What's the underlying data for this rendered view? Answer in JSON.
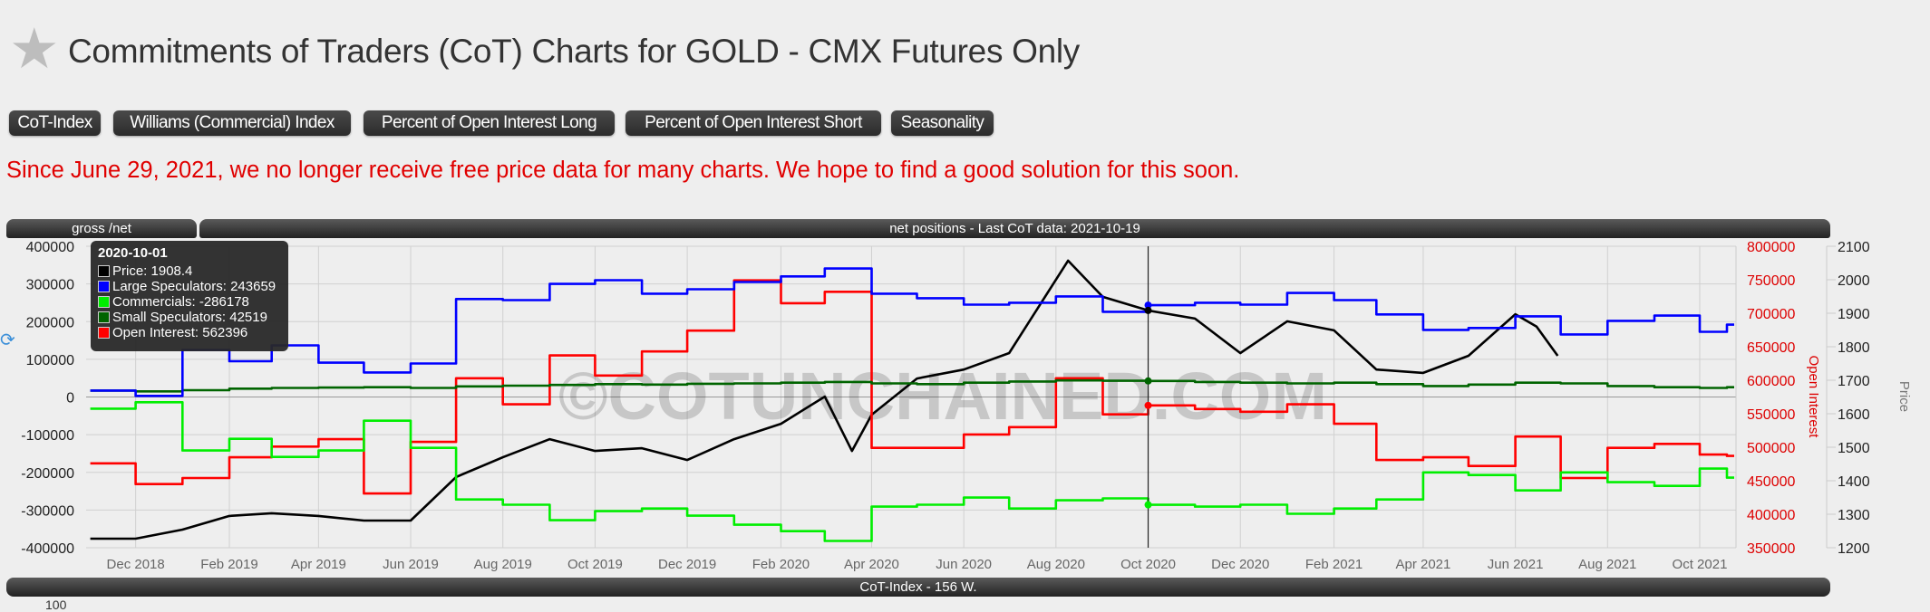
{
  "header": {
    "star_icon": "star-icon",
    "title": "Commitments of Traders (CoT) Charts for GOLD - CMX Futures Only"
  },
  "nav_buttons": [
    "CoT-Index",
    "Williams (Commercial) Index",
    "Percent of Open Interest Long",
    "Percent of Open Interest Short",
    "Seasonality"
  ],
  "notice": "Since June 29, 2021, we no longer receive free price data for many charts. We hope to find a good solution for this soon.",
  "chart_panel": {
    "toggle_label": "gross /net",
    "title": "net positions - Last CoT data: 2021-10-19",
    "bottom_bar": "CoT-Index - 156 W.",
    "bottom_cut_label": "100"
  },
  "tooltip": {
    "date": "2020-10-01",
    "rows": [
      {
        "label": "Price: 1908.4",
        "color": "#000000"
      },
      {
        "label": "Large Speculators: 243659",
        "color": "#0000ff"
      },
      {
        "label": "Commercials: -286178",
        "color": "#00ee00"
      },
      {
        "label": "Small Speculators: 42519",
        "color": "#006400"
      },
      {
        "label": "Open Interest: 562396",
        "color": "#ff0000"
      }
    ]
  },
  "chart_data": {
    "type": "line",
    "title": "net positions - Last CoT data: 2021-10-19",
    "watermark": "©COTUNCHAINED.COM",
    "crosshair_date": "2020-10-01",
    "x_ticks": [
      {
        "date": "2018-12-01",
        "label": "Dec 2018"
      },
      {
        "date": "2019-02-01",
        "label": "Feb 2019"
      },
      {
        "date": "2019-04-01",
        "label": "Apr 2019"
      },
      {
        "date": "2019-06-01",
        "label": "Jun 2019"
      },
      {
        "date": "2019-08-01",
        "label": "Aug 2019"
      },
      {
        "date": "2019-10-01",
        "label": "Oct 2019"
      },
      {
        "date": "2019-12-01",
        "label": "Dec 2019"
      },
      {
        "date": "2020-02-01",
        "label": "Feb 2020"
      },
      {
        "date": "2020-04-01",
        "label": "Apr 2020"
      },
      {
        "date": "2020-06-01",
        "label": "Jun 2020"
      },
      {
        "date": "2020-08-01",
        "label": "Aug 2020"
      },
      {
        "date": "2020-10-01",
        "label": "Oct 2020"
      },
      {
        "date": "2020-12-01",
        "label": "Dec 2020"
      },
      {
        "date": "2021-02-01",
        "label": "Feb 2021"
      },
      {
        "date": "2021-04-01",
        "label": "Apr 2021"
      },
      {
        "date": "2021-06-01",
        "label": "Jun 2021"
      },
      {
        "date": "2021-08-01",
        "label": "Aug 2021"
      },
      {
        "date": "2021-10-01",
        "label": "Oct 2021"
      }
    ],
    "y_left": {
      "ylim": [
        -400000,
        400000
      ],
      "ticks": [
        "400000",
        "300000",
        "200000",
        "100000",
        "0",
        "-100000",
        "-200000",
        "-300000",
        "-400000"
      ]
    },
    "y_open_interest": {
      "label": "Open Interest",
      "ylim": [
        350000,
        800000
      ],
      "ticks": [
        "800000",
        "750000",
        "700000",
        "650000",
        "600000",
        "550000",
        "500000",
        "450000",
        "400000",
        "350000"
      ],
      "color": "#dd0000"
    },
    "y_price": {
      "label": "Price",
      "ylim": [
        1200,
        2100
      ],
      "ticks": [
        "2100",
        "2000",
        "1900",
        "1800",
        "1700",
        "1600",
        "1500",
        "1400",
        "1300",
        "1200"
      ]
    },
    "dates": [
      "2018-11-01",
      "2018-12-01",
      "2019-01-01",
      "2019-02-01",
      "2019-03-01",
      "2019-04-01",
      "2019-05-01",
      "2019-06-01",
      "2019-07-01",
      "2019-08-01",
      "2019-09-01",
      "2019-10-01",
      "2019-11-01",
      "2019-12-01",
      "2020-01-01",
      "2020-02-01",
      "2020-03-01",
      "2020-04-01",
      "2020-05-01",
      "2020-06-01",
      "2020-07-01",
      "2020-08-01",
      "2020-09-01",
      "2020-10-01",
      "2020-11-01",
      "2020-12-01",
      "2021-01-01",
      "2021-02-01",
      "2021-03-01",
      "2021-04-01",
      "2021-05-01",
      "2021-06-01",
      "2021-07-01",
      "2021-08-01",
      "2021-09-01",
      "2021-10-01",
      "2021-10-19"
    ],
    "series": [
      {
        "name": "Large Speculators",
        "axis": "left",
        "color": "#0000ff",
        "step": true,
        "values": [
          17000,
          3000,
          125000,
          95000,
          137000,
          91000,
          65000,
          89000,
          260000,
          257000,
          300000,
          310000,
          274000,
          286000,
          305000,
          320000,
          341000,
          274000,
          262000,
          245000,
          250000,
          267000,
          226000,
          243659,
          250000,
          245000,
          276000,
          257000,
          219000,
          178000,
          183000,
          214000,
          166000,
          202000,
          216000,
          173000,
          192000
        ]
      },
      {
        "name": "Commercials",
        "axis": "left",
        "color": "#00ee00",
        "step": true,
        "values": [
          -31000,
          -14000,
          -142000,
          -111000,
          -159000,
          -142000,
          -63000,
          -135000,
          -272000,
          -286000,
          -327000,
          -303000,
          -296000,
          -315000,
          -339000,
          -356000,
          -382000,
          -291000,
          -286000,
          -267000,
          -296000,
          -274000,
          -269000,
          -286178,
          -291000,
          -286000,
          -310000,
          -296000,
          -272000,
          -200000,
          -207000,
          -248000,
          -200000,
          -226000,
          -236000,
          -190000,
          -214000
        ]
      },
      {
        "name": "Small Speculators",
        "axis": "left",
        "color": "#006400",
        "step": true,
        "values": [
          17000,
          15000,
          18000,
          22000,
          24000,
          25000,
          26000,
          24000,
          28000,
          30000,
          32000,
          34000,
          33000,
          35000,
          36000,
          38000,
          40000,
          36000,
          34000,
          38000,
          41000,
          44000,
          43000,
          42519,
          40000,
          38000,
          36000,
          38000,
          34000,
          29000,
          33000,
          38000,
          36000,
          29000,
          26000,
          24000,
          26000
        ]
      },
      {
        "name": "Open Interest",
        "axis": "oi",
        "color": "#ff0000",
        "step": true,
        "values": [
          476000,
          445000,
          454000,
          485000,
          501000,
          512000,
          431000,
          508000,
          603000,
          564000,
          637000,
          607000,
          643000,
          674000,
          749000,
          715000,
          732000,
          499000,
          499000,
          519000,
          530000,
          603000,
          549000,
          562396,
          557000,
          553000,
          564000,
          535000,
          481000,
          485000,
          472000,
          516000,
          454000,
          499000,
          505000,
          489000,
          487000
        ]
      },
      {
        "name": "Price",
        "axis": "price",
        "color": "#000000",
        "step": false,
        "points": [
          [
            "2018-11-01",
            1227
          ],
          [
            "2018-12-01",
            1227
          ],
          [
            "2019-01-01",
            1254
          ],
          [
            "2019-02-01",
            1295
          ],
          [
            "2019-03-01",
            1303
          ],
          [
            "2019-04-01",
            1295
          ],
          [
            "2019-05-01",
            1281
          ],
          [
            "2019-06-01",
            1281
          ],
          [
            "2019-07-01",
            1411
          ],
          [
            "2019-08-01",
            1470
          ],
          [
            "2019-09-01",
            1524
          ],
          [
            "2019-10-01",
            1489
          ],
          [
            "2019-11-01",
            1497
          ],
          [
            "2019-12-01",
            1462
          ],
          [
            "2020-01-01",
            1524
          ],
          [
            "2020-02-01",
            1570
          ],
          [
            "2020-03-01",
            1651
          ],
          [
            "2020-03-19",
            1489
          ],
          [
            "2020-04-01",
            1597
          ],
          [
            "2020-05-01",
            1705
          ],
          [
            "2020-06-01",
            1732
          ],
          [
            "2020-07-01",
            1781
          ],
          [
            "2020-08-09",
            2057
          ],
          [
            "2020-09-01",
            1949
          ],
          [
            "2020-10-01",
            1908.4
          ],
          [
            "2020-11-01",
            1884
          ],
          [
            "2020-12-01",
            1781
          ],
          [
            "2021-01-01",
            1876
          ],
          [
            "2021-02-01",
            1849
          ],
          [
            "2021-03-01",
            1732
          ],
          [
            "2021-04-01",
            1722
          ],
          [
            "2021-05-01",
            1773
          ],
          [
            "2021-06-01",
            1897
          ],
          [
            "2021-06-15",
            1860
          ],
          [
            "2021-06-29",
            1773
          ]
        ]
      }
    ]
  }
}
